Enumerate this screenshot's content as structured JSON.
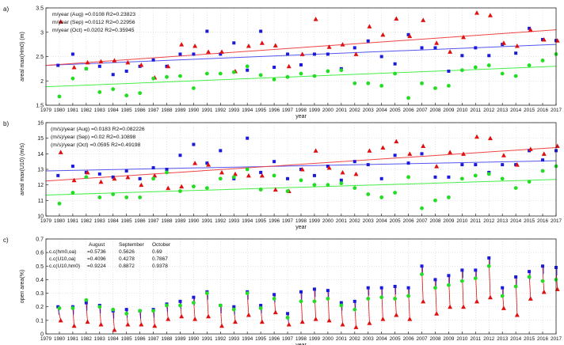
{
  "chart_data": [
    {
      "type": "scatter",
      "panel_label": "a)",
      "ylabel": "areal max(Hm0) (m)",
      "xlabel": "year",
      "xlim": [
        1979,
        2017
      ],
      "ylim": [
        1.5,
        3.5
      ],
      "yticks": [
        1.5,
        2.0,
        2.5,
        3.0,
        3.5
      ],
      "ytick_labels": [
        "1.5",
        "2",
        "2.5",
        "3",
        "3.5"
      ],
      "grid": true,
      "annotations": [
        "m/year (Aug) =0.0108  R2=0.23823",
        "m/year (Sep) =0.0112  R2=0.22956",
        "m/year (Oct) =0.0202  R2=0.35945"
      ],
      "series": [
        {
          "month": "Aug",
          "marker": "square",
          "color": "#1a1adb",
          "x": [
            1979.9,
            1981.0,
            1982.0,
            1983.0,
            1984.0,
            1985.0,
            1986.0,
            1987.0,
            1988.0,
            1989.0,
            1990.0,
            1991.0,
            1992.0,
            1993.0,
            1994.0,
            1995.0,
            1996.0,
            1997.0,
            1998.0,
            1999.0,
            2000.0,
            2001.0,
            2002.0,
            2003.0,
            2004.0,
            2005.0,
            2006.0,
            2007.0,
            2008.0,
            2009.0,
            2010.0,
            2011.0,
            2012.0,
            2013.0,
            2014.0,
            2015.0,
            2016.0,
            2017.0
          ],
          "y": [
            2.32,
            2.55,
            2.25,
            2.3,
            2.13,
            2.2,
            2.3,
            2.43,
            2.3,
            2.55,
            2.55,
            3.02,
            2.55,
            2.78,
            2.22,
            3.02,
            2.28,
            2.55,
            2.33,
            2.55,
            2.55,
            2.25,
            2.68,
            2.82,
            2.5,
            2.35,
            2.95,
            2.68,
            2.68,
            2.2,
            2.52,
            2.68,
            2.52,
            2.75,
            2.57,
            3.08,
            2.85,
            2.83
          ]
        },
        {
          "month": "Sep",
          "marker": "triangle",
          "color": "#e01010",
          "x": [
            1980.1,
            1981.1,
            1982.1,
            1983.1,
            1984.1,
            1985.1,
            1986.1,
            1987.1,
            1988.1,
            1989.1,
            1990.1,
            1991.1,
            1992.1,
            1993.1,
            1994.1,
            1995.1,
            1996.1,
            1997.1,
            1998.1,
            1999.1,
            2000.1,
            2001.1,
            2002.1,
            2003.1,
            2004.1,
            2005.1,
            2006.1,
            2007.1,
            2008.1,
            2009.1,
            2010.1,
            2011.1,
            2012.1,
            2013.1,
            2014.1,
            2015.1,
            2016.1,
            2017.1
          ],
          "y": [
            3.22,
            2.28,
            2.38,
            2.4,
            2.42,
            2.38,
            2.33,
            2.07,
            2.3,
            2.75,
            2.72,
            2.6,
            2.6,
            2.2,
            2.72,
            2.78,
            2.73,
            2.3,
            2.55,
            3.27,
            2.7,
            2.75,
            2.55,
            3.12,
            2.95,
            3.28,
            2.92,
            3.25,
            2.78,
            2.6,
            2.9,
            3.4,
            3.35,
            2.78,
            2.72,
            3.05,
            2.85,
            2.83
          ]
        },
        {
          "month": "Oct",
          "marker": "circle",
          "color": "#22dd22",
          "x": [
            1980.0,
            1981.0,
            1982.0,
            1983.0,
            1984.0,
            1985.0,
            1986.0,
            1987.0,
            1988.0,
            1989.0,
            1990.0,
            1991.0,
            1992.0,
            1993.0,
            1994.0,
            1995.0,
            1996.0,
            1997.0,
            1998.0,
            1999.0,
            2000.0,
            2001.0,
            2002.0,
            2003.0,
            2004.0,
            2005.0,
            2006.0,
            2007.0,
            2008.0,
            2009.0,
            2010.0,
            2011.0,
            2012.0,
            2013.0,
            2014.0,
            2015.0,
            2016.0,
            2017.0
          ],
          "y": [
            1.68,
            2.05,
            2.25,
            1.77,
            1.83,
            1.7,
            1.75,
            2.05,
            2.08,
            2.1,
            1.85,
            2.15,
            2.15,
            2.18,
            2.3,
            2.12,
            2.03,
            2.08,
            2.15,
            2.1,
            2.2,
            2.22,
            1.95,
            1.95,
            1.9,
            2.15,
            1.65,
            1.95,
            1.85,
            1.9,
            2.22,
            2.28,
            2.32,
            2.15,
            2.1,
            2.32,
            2.42,
            2.55
          ]
        }
      ],
      "trendlines": [
        {
          "month": "Aug",
          "color": "#5555ee",
          "y_start": 2.32,
          "y_end": 2.75
        },
        {
          "month": "Sep",
          "color": "#ee4444",
          "y_start": 2.32,
          "y_end": 3.05
        },
        {
          "month": "Oct",
          "color": "#44ee44",
          "y_start": 1.88,
          "y_end": 2.3
        }
      ]
    },
    {
      "type": "scatter",
      "panel_label": "b)",
      "ylabel": "areal max(U10) (m/s)",
      "xlabel": "year",
      "xlim": [
        1979,
        2017
      ],
      "ylim": [
        10,
        16
      ],
      "yticks": [
        10,
        11,
        12,
        13,
        14,
        15,
        16
      ],
      "ytick_labels": [
        "10",
        "11",
        "12",
        "13",
        "14",
        "15",
        "16"
      ],
      "grid": true,
      "annotations": [
        "(m/s)/year (Aug) =0.0183  R2=0.082226",
        "(m/s)/year (Sep) =0.02  R2=0.10898",
        "(m/s)/year (Oct) =0.0595  R2=0.49198"
      ],
      "series": [
        {
          "month": "Aug",
          "marker": "square",
          "color": "#1a1adb",
          "x": [
            1979.9,
            1981.0,
            1982.0,
            1983.0,
            1984.0,
            1985.0,
            1986.0,
            1987.0,
            1988.0,
            1989.0,
            1990.0,
            1991.0,
            1992.0,
            1993.0,
            1994.0,
            1995.0,
            1996.0,
            1997.0,
            1998.0,
            1999.0,
            2000.0,
            2001.0,
            2002.0,
            2003.0,
            2004.0,
            2005.0,
            2006.0,
            2007.0,
            2008.0,
            2009.0,
            2010.0,
            2011.0,
            2012.0,
            2013.0,
            2014.0,
            2015.0,
            2016.0,
            2017.0
          ],
          "y": [
            12.6,
            13.2,
            12.8,
            12.7,
            12.5,
            12.9,
            12.4,
            13.1,
            13.0,
            13.9,
            14.6,
            13.4,
            14.2,
            12.4,
            15.0,
            12.8,
            13.5,
            12.4,
            13.0,
            12.6,
            13.2,
            12.3,
            13.5,
            13.3,
            12.4,
            13.9,
            13.4,
            14.0,
            12.5,
            12.5,
            13.3,
            13.3,
            12.8,
            13.3,
            13.3,
            14.2,
            13.6,
            14.2
          ]
        },
        {
          "month": "Sep",
          "marker": "triangle",
          "color": "#e01010",
          "x": [
            1980.1,
            1981.1,
            1982.1,
            1983.1,
            1984.1,
            1985.1,
            1986.1,
            1987.1,
            1988.1,
            1989.1,
            1990.1,
            1991.1,
            1992.1,
            1993.1,
            1994.1,
            1995.1,
            1996.1,
            1997.1,
            1998.1,
            1999.1,
            2000.1,
            2001.1,
            2002.1,
            2003.1,
            2004.1,
            2005.1,
            2006.1,
            2007.1,
            2008.1,
            2009.1,
            2010.1,
            2011.1,
            2012.1,
            2013.1,
            2014.1,
            2015.1,
            2016.1,
            2017.1
          ],
          "y": [
            14.1,
            12.3,
            12.8,
            12.2,
            12.4,
            12.5,
            12.0,
            12.6,
            11.8,
            11.9,
            13.4,
            13.3,
            12.8,
            12.7,
            12.6,
            12.6,
            11.7,
            11.6,
            13.0,
            14.2,
            13.1,
            12.8,
            12.7,
            14.2,
            14.4,
            14.8,
            14.0,
            14.5,
            13.2,
            14.1,
            14.0,
            15.1,
            15.0,
            13.9,
            13.3,
            14.3,
            14.0,
            14.5
          ]
        },
        {
          "month": "Oct",
          "marker": "circle",
          "color": "#22dd22",
          "x": [
            1980.0,
            1981.0,
            1982.0,
            1983.0,
            1984.0,
            1985.0,
            1986.0,
            1987.0,
            1988.0,
            1989.0,
            1990.0,
            1991.0,
            1992.0,
            1993.0,
            1994.0,
            1995.0,
            1996.0,
            1997.0,
            1998.0,
            1999.0,
            2000.0,
            2001.0,
            2002.0,
            2003.0,
            2004.0,
            2005.0,
            2006.0,
            2007.0,
            2008.0,
            2009.0,
            2010.0,
            2011.0,
            2012.0,
            2013.0,
            2014.0,
            2015.0,
            2016.0,
            2017.0
          ],
          "y": [
            10.8,
            11.5,
            12.5,
            11.2,
            11.4,
            11.2,
            11.2,
            12.4,
            12.8,
            11.6,
            11.9,
            11.8,
            12.4,
            12.5,
            13.0,
            11.7,
            12.6,
            11.6,
            12.3,
            12.0,
            12.0,
            12.1,
            11.8,
            11.4,
            11.2,
            11.5,
            12.5,
            10.5,
            11.0,
            11.2,
            12.4,
            12.6,
            12.7,
            12.4,
            11.8,
            12.2,
            12.9,
            13.2
          ]
        }
      ],
      "trendlines": [
        {
          "month": "Aug",
          "color": "#5555ee",
          "y_start": 12.9,
          "y_end": 13.55
        },
        {
          "month": "Sep",
          "color": "#ee4444",
          "y_start": 12.25,
          "y_end": 14.4
        },
        {
          "month": "Oct",
          "color": "#44ee44",
          "y_start": 11.35,
          "y_end": 12.35
        }
      ]
    },
    {
      "type": "scatter",
      "panel_label": "c)",
      "ylabel": "open area(%)",
      "xlabel": "year",
      "xlim": [
        1979,
        2017
      ],
      "ylim": [
        0,
        0.7
      ],
      "yticks": [
        0,
        0.1,
        0.2,
        0.3,
        0.4,
        0.5,
        0.6,
        0.7
      ],
      "ytick_labels": [
        "0",
        "0.1",
        "0.2",
        "0.3",
        "0.4",
        "0.5",
        "0.6",
        "0.7"
      ],
      "grid": true,
      "table": {
        "columns": [
          "",
          "August",
          "September",
          "October"
        ],
        "rows": [
          [
            "c.c(hm0,oa)",
            "=0.5736",
            "0.5626",
            "0.69"
          ],
          [
            "c.c(U10,oa)",
            "=0.4096",
            "0.4278",
            "0.7867"
          ],
          [
            "c.c(U10,hm0)",
            "=0.9224",
            "0.8872",
            "0.9378"
          ]
        ]
      },
      "series": [
        {
          "month": "Aug",
          "marker": "square",
          "color": "#1a1adb",
          "x": [
            1979.9,
            1981.0,
            1982.0,
            1983.0,
            1984.0,
            1985.0,
            1986.0,
            1987.0,
            1988.0,
            1989.0,
            1990.0,
            1991.0,
            1992.0,
            1993.0,
            1994.0,
            1995.0,
            1996.0,
            1997.0,
            1998.0,
            1999.0,
            2000.0,
            2001.0,
            2002.0,
            2003.0,
            2004.0,
            2005.0,
            2006.0,
            2007.0,
            2008.0,
            2009.0,
            2010.0,
            2011.0,
            2012.0,
            2013.0,
            2014.0,
            2015.0,
            2016.0,
            2017.0
          ],
          "y": [
            0.2,
            0.2,
            0.23,
            0.21,
            0.17,
            0.18,
            0.17,
            0.18,
            0.22,
            0.24,
            0.27,
            0.31,
            0.21,
            0.2,
            0.31,
            0.21,
            0.29,
            0.15,
            0.31,
            0.33,
            0.32,
            0.23,
            0.24,
            0.34,
            0.34,
            0.35,
            0.34,
            0.5,
            0.4,
            0.43,
            0.47,
            0.47,
            0.56,
            0.34,
            0.42,
            0.46,
            0.5,
            0.49
          ]
        },
        {
          "month": "Sep",
          "marker": "triangle",
          "color": "#e01010",
          "x": [
            1980.1,
            1981.1,
            1982.1,
            1983.1,
            1984.1,
            1985.1,
            1986.1,
            1987.1,
            1988.1,
            1989.1,
            1990.1,
            1991.1,
            1992.1,
            1993.1,
            1994.1,
            1995.1,
            1996.1,
            1997.1,
            1998.1,
            1999.1,
            2000.1,
            2001.1,
            2002.1,
            2003.1,
            2004.1,
            2005.1,
            2006.1,
            2007.1,
            2008.1,
            2009.1,
            2010.1,
            2011.1,
            2012.1,
            2013.1,
            2014.1,
            2015.1,
            2016.1,
            2017.1
          ],
          "y": [
            0.1,
            0.06,
            0.09,
            0.07,
            0.03,
            0.07,
            0.07,
            0.06,
            0.11,
            0.13,
            0.11,
            0.13,
            0.06,
            0.09,
            0.14,
            0.09,
            0.16,
            0.07,
            0.09,
            0.11,
            0.1,
            0.07,
            0.05,
            0.08,
            0.11,
            0.14,
            0.11,
            0.24,
            0.15,
            0.2,
            0.2,
            0.24,
            0.27,
            0.19,
            0.14,
            0.26,
            0.31,
            0.33
          ]
        },
        {
          "month": "Oct",
          "marker": "circle",
          "color": "#22dd22",
          "x": [
            1980.0,
            1981.0,
            1982.0,
            1983.0,
            1984.0,
            1985.0,
            1986.0,
            1987.0,
            1988.0,
            1989.0,
            1990.0,
            1991.0,
            1992.0,
            1993.0,
            1994.0,
            1995.0,
            1996.0,
            1997.0,
            1998.0,
            1999.0,
            2000.0,
            2001.0,
            2002.0,
            2003.0,
            2004.0,
            2005.0,
            2006.0,
            2007.0,
            2008.0,
            2009.0,
            2010.0,
            2011.0,
            2012.0,
            2013.0,
            2014.0,
            2015.0,
            2016.0,
            2017.0
          ],
          "y": [
            0.19,
            0.19,
            0.25,
            0.2,
            0.18,
            0.15,
            0.17,
            0.17,
            0.21,
            0.21,
            0.23,
            0.3,
            0.21,
            0.18,
            0.3,
            0.19,
            0.26,
            0.12,
            0.24,
            0.24,
            0.26,
            0.21,
            0.18,
            0.26,
            0.27,
            0.26,
            0.28,
            0.44,
            0.34,
            0.36,
            0.39,
            0.41,
            0.5,
            0.28,
            0.35,
            0.42,
            0.39,
            0.4
          ]
        }
      ]
    }
  ],
  "xtick_labels": [
    "1979",
    "1980",
    "1981",
    "1982",
    "1983",
    "1984",
    "1985",
    "1986",
    "1987",
    "1988",
    "1989",
    "1990",
    "1991",
    "1992",
    "1993",
    "1994",
    "1995",
    "1996",
    "1997",
    "1998",
    "1999",
    "2000",
    "2001",
    "2002",
    "2003",
    "2004",
    "2005",
    "2006",
    "2007",
    "2008",
    "2009",
    "2010",
    "2011",
    "2012",
    "2013",
    "2014",
    "2015",
    "2016",
    "2017"
  ]
}
